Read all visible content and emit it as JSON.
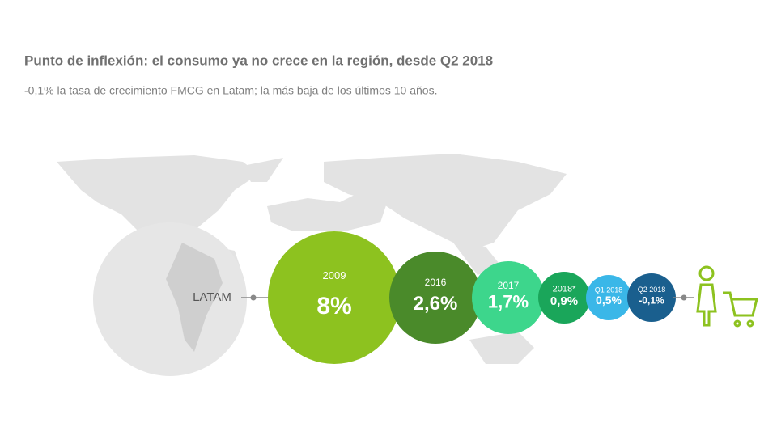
{
  "title": "Punto de inflexión: el consumo ya no crece en la región, desde Q2 2018",
  "subtitle": "-0,1% la tasa de crecimiento FMCG en Latam; la más baja de los últimos 10 años.",
  "region": "LATAM",
  "bubbles": [
    {
      "period": "2009",
      "value": "8%"
    },
    {
      "period": "2016",
      "value": "2,6%"
    },
    {
      "period": "2017",
      "value": "1,7%"
    },
    {
      "period": "2018*",
      "value": "0,9%"
    },
    {
      "period": "Q1 2018",
      "value": "0,5%"
    },
    {
      "period": "Q2 2018",
      "value": "-0,1%"
    }
  ]
}
